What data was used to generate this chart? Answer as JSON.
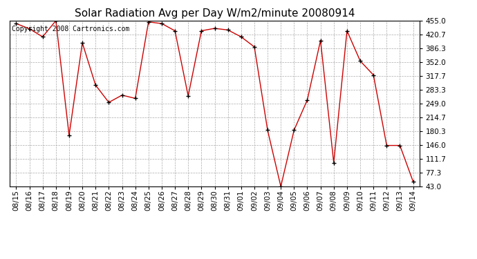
{
  "title": "Solar Radiation Avg per Day W/m2/minute 20080914",
  "copyright": "Copyright 2008 Cartronics.com",
  "x_labels": [
    "08/15",
    "08/16",
    "08/17",
    "08/18",
    "08/19",
    "08/20",
    "08/21",
    "08/22",
    "08/23",
    "08/24",
    "08/25",
    "08/26",
    "08/27",
    "08/28",
    "08/29",
    "08/30",
    "08/31",
    "09/01",
    "09/02",
    "09/03",
    "09/04",
    "09/05",
    "09/06",
    "09/07",
    "09/08",
    "09/09",
    "09/10",
    "09/11",
    "09/12",
    "09/13",
    "09/14"
  ],
  "y_values": [
    448,
    435,
    415,
    455,
    170,
    400,
    295,
    252,
    270,
    262,
    452,
    448,
    430,
    268,
    430,
    436,
    432,
    415,
    390,
    183,
    43,
    183,
    258,
    406,
    102,
    430,
    355,
    320,
    145,
    145,
    55
  ],
  "y_ticks": [
    43.0,
    77.3,
    111.7,
    146.0,
    180.3,
    214.7,
    249.0,
    283.3,
    317.7,
    352.0,
    386.3,
    420.7,
    455.0
  ],
  "line_color": "#cc0000",
  "marker_color": "#000000",
  "bg_color": "#ffffff",
  "grid_color": "#aaaaaa",
  "title_fontsize": 11,
  "copyright_fontsize": 7,
  "tick_fontsize": 7.5,
  "y_min": 43.0,
  "y_max": 455.0
}
